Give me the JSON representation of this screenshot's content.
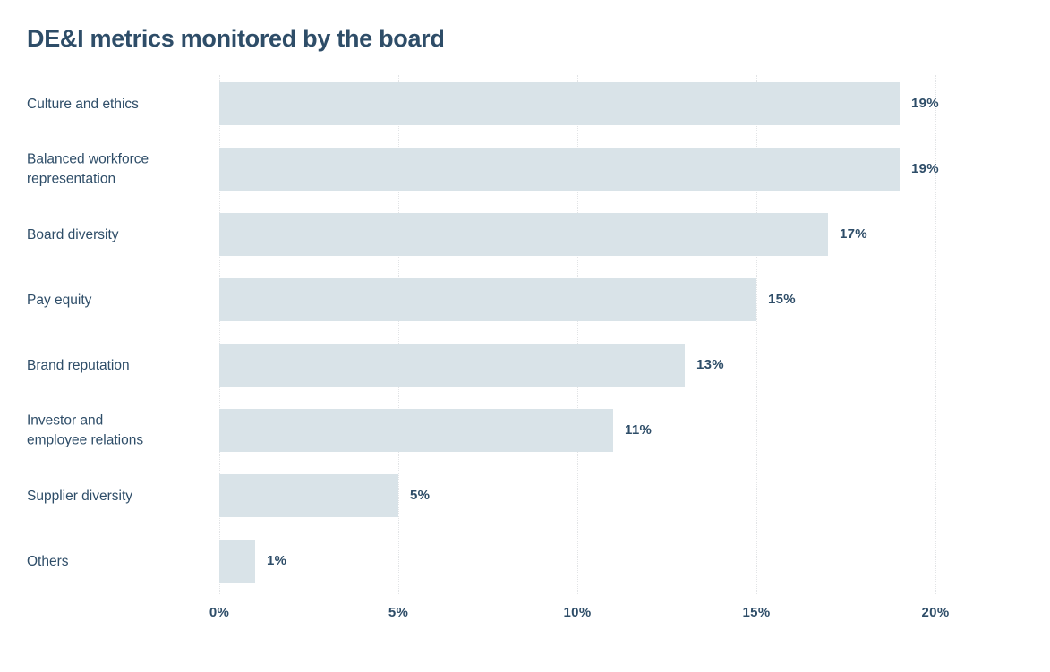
{
  "page": {
    "title": "DE&I metrics monitored by the board"
  },
  "colors": {
    "bar_fill": "#d9e3e8",
    "text_navy": "#2e4d68",
    "gridline": "#e2e4e6",
    "background": "#ffffff"
  },
  "chart_data": {
    "type": "bar",
    "orientation": "horizontal",
    "title": "DE&I metrics monitored by the board",
    "categories": [
      "Culture and ethics",
      "Balanced workforce\nrepresentation",
      "Board diversity",
      "Pay equity",
      "Brand reputation",
      "Investor and\nemployee relations",
      "Supplier diversity",
      "Others"
    ],
    "values": [
      19,
      19,
      17,
      15,
      13,
      11,
      5,
      1
    ],
    "value_labels": [
      "19%",
      "19%",
      "17%",
      "15%",
      "13%",
      "11%",
      "5%",
      "1%"
    ],
    "xlabel": "",
    "ylabel": "",
    "xlim": [
      0,
      20
    ],
    "x_ticks": [
      "0%",
      "5%",
      "10%",
      "15%",
      "20%"
    ],
    "x_tick_values": [
      0,
      5,
      10,
      15,
      20
    ],
    "grid": "vertical-dotted",
    "legend": "none",
    "bars_sorted": "descending"
  }
}
